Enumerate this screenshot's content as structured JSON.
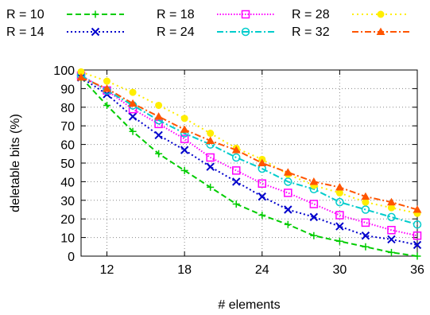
{
  "chart_data": {
    "type": "line",
    "title": "",
    "xlabel": "# elements",
    "ylabel": "deletable bits (%)",
    "xlim": [
      10,
      36
    ],
    "ylim": [
      0,
      100
    ],
    "x_ticks": [
      12,
      18,
      24,
      30,
      36
    ],
    "y_ticks": [
      0,
      10,
      20,
      30,
      40,
      50,
      60,
      70,
      80,
      90,
      100
    ],
    "grid": true,
    "legend_position": "top",
    "x": [
      10,
      12,
      14,
      16,
      18,
      20,
      22,
      24,
      26,
      28,
      30,
      32,
      34,
      36
    ],
    "series": [
      {
        "name": "R = 10",
        "color": "#00cc00",
        "marker": "plus",
        "dash": "dashed",
        "values": [
          96,
          81,
          67,
          55,
          46,
          37,
          28,
          22,
          17,
          11,
          8,
          5,
          2,
          0
        ]
      },
      {
        "name": "R = 14",
        "color": "#0000cc",
        "marker": "cross",
        "dash": "dotted",
        "values": [
          96,
          87,
          75,
          65,
          57,
          48,
          40,
          32,
          25,
          21,
          16,
          11,
          9,
          6
        ]
      },
      {
        "name": "R = 18",
        "color": "#ff00ff",
        "marker": "square",
        "dash": "dense-dotted",
        "values": [
          97,
          89,
          79,
          71,
          63,
          53,
          46,
          39,
          34,
          28,
          22,
          18,
          14,
          11
        ]
      },
      {
        "name": "R = 24",
        "color": "#00cccc",
        "marker": "circle",
        "dash": "dashdot",
        "values": [
          97,
          89,
          81,
          73,
          66,
          60,
          53,
          47,
          40,
          36,
          29,
          25,
          21,
          17
        ]
      },
      {
        "name": "R = 28",
        "color": "#ffee00",
        "marker": "dot",
        "dash": "sparse-dotted",
        "values": [
          99,
          94,
          88,
          81,
          74,
          66,
          58,
          52,
          44,
          38,
          34,
          29,
          26,
          23
        ]
      },
      {
        "name": "R = 32",
        "color": "#ff5500",
        "marker": "triangle",
        "dash": "dashdot",
        "values": [
          96,
          90,
          82,
          75,
          68,
          62,
          57,
          50,
          45,
          40,
          37,
          32,
          29,
          25
        ]
      }
    ]
  }
}
